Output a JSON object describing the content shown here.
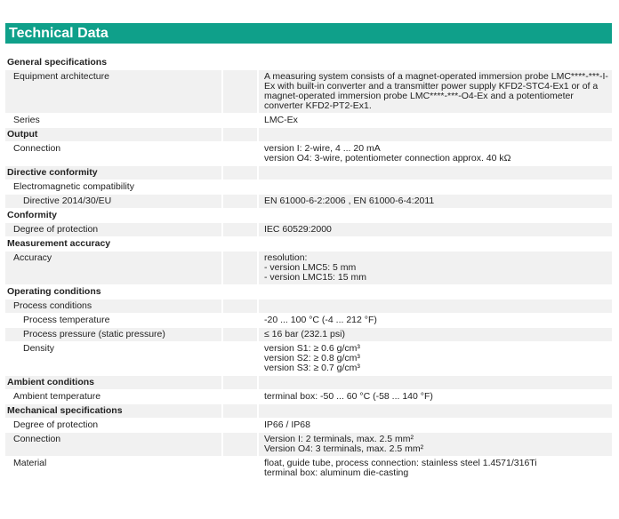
{
  "title": "Technical Data",
  "rows": [
    {
      "label": "General specifications",
      "level": 0,
      "value": ""
    },
    {
      "label": "Equipment architecture",
      "level": 1,
      "value": "A measuring system consists of a magnet-operated immersion probe LMC****-***-I-Ex with built-in converter and a transmitter power supply KFD2-STC4-Ex1 or of a magnet-operated immersion probe LMC****-***-O4-Ex and a potentiometer converter KFD2-PT2-Ex1."
    },
    {
      "label": "Series",
      "level": 1,
      "value": "LMC-Ex"
    },
    {
      "label": "Output",
      "level": 0,
      "value": ""
    },
    {
      "label": "Connection",
      "level": 1,
      "value": "version I: 2-wire, 4 ... 20 mA\nversion O4: 3-wire, potentiometer connection approx. 40 kΩ"
    },
    {
      "label": "Directive conformity",
      "level": 0,
      "value": ""
    },
    {
      "label": "Electromagnetic compatibility",
      "level": 1,
      "value": ""
    },
    {
      "label": "Directive 2014/30/EU",
      "level": 2,
      "value": "EN 61000-6-2:2006 , EN 61000-6-4:2011"
    },
    {
      "label": "Conformity",
      "level": 0,
      "value": ""
    },
    {
      "label": "Degree of protection",
      "level": 1,
      "value": "IEC 60529:2000"
    },
    {
      "label": "Measurement accuracy",
      "level": 0,
      "value": ""
    },
    {
      "label": "Accuracy",
      "level": 1,
      "value": "resolution:\n- version LMC5: 5 mm\n- version LMC15: 15 mm"
    },
    {
      "label": "Operating conditions",
      "level": 0,
      "value": ""
    },
    {
      "label": "Process conditions",
      "level": 1,
      "value": ""
    },
    {
      "label": "Process temperature",
      "level": 2,
      "value": "-20 ... 100 °C (-4 ... 212 °F)"
    },
    {
      "label": "Process pressure (static pressure)",
      "level": 2,
      "value": "≤ 16 bar (232.1 psi)"
    },
    {
      "label": "Density",
      "level": 2,
      "value": "version S1: ≥ 0.6 g/cm³\nversion S2: ≥ 0.8 g/cm³\nversion S3: ≥ 0.7 g/cm³"
    },
    {
      "label": "Ambient conditions",
      "level": 0,
      "value": ""
    },
    {
      "label": "Ambient temperature",
      "level": 1,
      "value": "terminal box: -50 ... 60 °C (-58 ... 140 °F)"
    },
    {
      "label": "Mechanical specifications",
      "level": 0,
      "value": ""
    },
    {
      "label": "Degree of protection",
      "level": 1,
      "value": "IP66 / IP68"
    },
    {
      "label": "Connection",
      "level": 1,
      "value": "Version I: 2 terminals, max. 2.5 mm²\nVersion O4: 3 terminals, max. 2.5 mm²"
    },
    {
      "label": "Material",
      "level": 1,
      "value": "float, guide tube, process connection: stainless steel 1.4571/316Ti\nterminal box: aluminum die-casting"
    }
  ]
}
